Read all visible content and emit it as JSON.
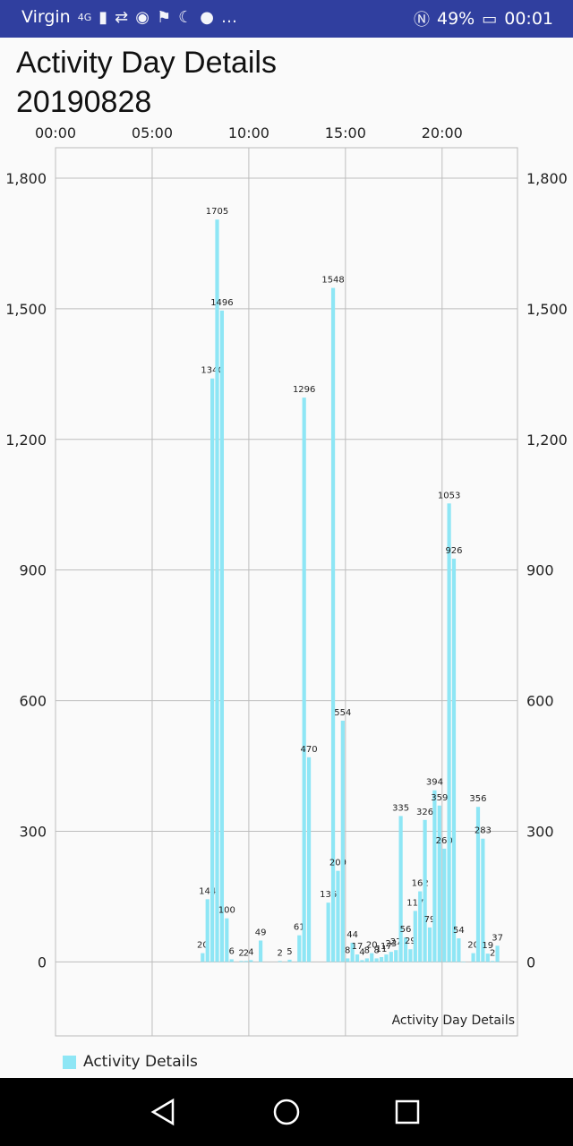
{
  "status_bar": {
    "carrier": "Virgin",
    "network": "4G",
    "battery": "49%",
    "time": "00:01",
    "bg_color": "#303f9f"
  },
  "header": {
    "title_line1": "Activity Day Details",
    "title_line2": "20190828"
  },
  "chart_data": {
    "type": "bar",
    "description_label": "Activity Day Details",
    "legend": "Activity Details",
    "bar_color": "#8ee6f5",
    "x_ticks": [
      "00:00",
      "05:00",
      "10:00",
      "15:00",
      "20:00"
    ],
    "y_ticks": [
      "0",
      "300",
      "600",
      "900",
      "1,200",
      "1,500",
      "1,800"
    ],
    "y_tick_values": [
      0,
      300,
      600,
      900,
      1200,
      1500,
      1800
    ],
    "ylim": [
      -170,
      1870
    ],
    "xlim_hours": [
      0,
      23.9
    ],
    "x_hours": [
      7.5,
      7.75,
      8.0,
      8.25,
      8.5,
      8.75,
      9.0,
      9.5,
      9.75,
      10.0,
      10.5,
      11.5,
      12.0,
      12.5,
      12.75,
      13.0,
      14.0,
      14.25,
      14.5,
      14.75,
      15.0,
      15.25,
      15.5,
      15.75,
      16.0,
      16.25,
      16.5,
      16.75,
      17.0,
      17.25,
      17.5,
      17.75,
      18.0,
      18.25,
      18.5,
      18.75,
      19.0,
      19.25,
      19.5,
      19.75,
      20.0,
      20.25,
      20.5,
      20.75,
      21.0,
      21.5,
      21.75,
      22.0,
      22.25,
      22.5,
      22.75
    ],
    "values": [
      20,
      144,
      1340,
      1705,
      1496,
      100,
      6,
      2,
      2,
      4,
      49,
      2,
      5,
      61,
      1296,
      470,
      136,
      1548,
      209,
      554,
      8,
      44,
      17,
      4,
      8,
      20,
      8,
      11,
      17,
      23,
      27,
      335,
      56,
      29,
      117,
      162,
      326,
      79,
      394,
      359,
      260,
      1053,
      926,
      54,
      0,
      20,
      356,
      283,
      19,
      2,
      37
    ],
    "labels": [
      "20",
      "144",
      "1340",
      "1705",
      "1496",
      "100",
      "6",
      "2",
      "2",
      "4",
      "49",
      "2",
      "5",
      "61",
      "1296",
      "470",
      "136",
      "1548",
      "209",
      "554",
      "8",
      "44",
      "17",
      "4",
      "8",
      "20",
      "8",
      "11",
      "17",
      "23",
      "27",
      "335",
      "56",
      "29",
      "117",
      "162",
      "326",
      "79",
      "394",
      "359",
      "260",
      "1053",
      "926",
      "54",
      "",
      "20",
      "356",
      "283",
      "19",
      "2",
      "37"
    ]
  }
}
